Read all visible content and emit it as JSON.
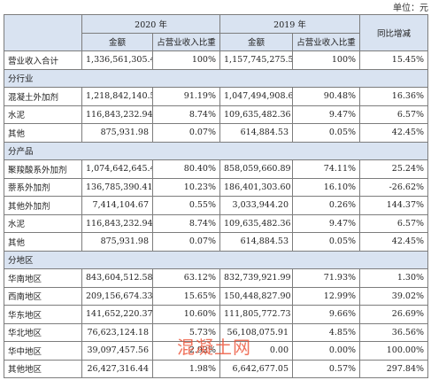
{
  "unit_label": "单位：元",
  "headers": {
    "year_2020": "2020 年",
    "year_2019": "2019 年",
    "yoy": "同比增减",
    "amount": "金额",
    "ratio": "占营业收入比重"
  },
  "total": {
    "label": "营业收入合计",
    "a2020": "1,336,561,305.46",
    "r2020": "100%",
    "a2019": "1,157,745,275.58",
    "r2019": "100%",
    "yoy": "15.45%"
  },
  "sections": [
    {
      "title": "分行业",
      "rows": [
        {
          "label": "混凝土外加剂",
          "a2020": "1,218,842,140.54",
          "r2020": "91.19%",
          "a2019": "1,047,494,908.69",
          "r2019": "90.48%",
          "yoy": "16.36%"
        },
        {
          "label": "水泥",
          "a2020": "116,843,232.94",
          "r2020": "8.74%",
          "a2019": "109,635,482.36",
          "r2019": "9.47%",
          "yoy": "6.57%"
        },
        {
          "label": "其他",
          "a2020": "875,931.98",
          "r2020": "0.07%",
          "a2019": "614,884.53",
          "r2019": "0.05%",
          "yoy": "42.45%"
        }
      ]
    },
    {
      "title": "分产品",
      "rows": [
        {
          "label": "聚羧酸系外加剂",
          "a2020": "1,074,642,645.46",
          "r2020": "80.40%",
          "a2019": "858,059,660.89",
          "r2019": "74.11%",
          "yoy": "25.24%"
        },
        {
          "label": "萘系外加剂",
          "a2020": "136,785,390.41",
          "r2020": "10.23%",
          "a2019": "186,401,303.60",
          "r2019": "16.10%",
          "yoy": "-26.62%"
        },
        {
          "label": "其他外加剂",
          "a2020": "7,414,104.67",
          "r2020": "0.55%",
          "a2019": "3,033,944.20",
          "r2019": "0.26%",
          "yoy": "144.37%"
        },
        {
          "label": "水泥",
          "a2020": "116,843,232.94",
          "r2020": "8.74%",
          "a2019": "109,635,482.36",
          "r2019": "9.47%",
          "yoy": "6.57%"
        },
        {
          "label": "其他",
          "a2020": "875,931.98",
          "r2020": "0.07%",
          "a2019": "614,884.53",
          "r2019": "0.05%",
          "yoy": "42.45%"
        }
      ]
    },
    {
      "title": "分地区",
      "rows": [
        {
          "label": "华南地区",
          "a2020": "843,604,512.58",
          "r2020": "63.12%",
          "a2019": "832,739,921.99",
          "r2019": "71.93%",
          "yoy": "1.30%"
        },
        {
          "label": "西南地区",
          "a2020": "209,156,674.33",
          "r2020": "15.65%",
          "a2019": "150,448,827.90",
          "r2019": "12.99%",
          "yoy": "39.02%"
        },
        {
          "label": "华东地区",
          "a2020": "141,652,220.37",
          "r2020": "10.60%",
          "a2019": "111,805,772.73",
          "r2019": "9.66%",
          "yoy": "26.69%"
        },
        {
          "label": "华北地区",
          "a2020": "76,623,124.18",
          "r2020": "5.73%",
          "a2019": "56,108,075.91",
          "r2019": "4.85%",
          "yoy": "36.56%"
        },
        {
          "label": "华中地区",
          "a2020": "39,097,457.56",
          "r2020": "2.92%",
          "a2019": "0.00",
          "r2019": "0.00%",
          "yoy": "100.00%"
        },
        {
          "label": "其他地区",
          "a2020": "26,427,316.44",
          "r2020": "1.98%",
          "a2019": "6,642,677.05",
          "r2019": "0.57%",
          "yoy": "297.84%"
        }
      ]
    }
  ],
  "watermark": "混凝土网"
}
